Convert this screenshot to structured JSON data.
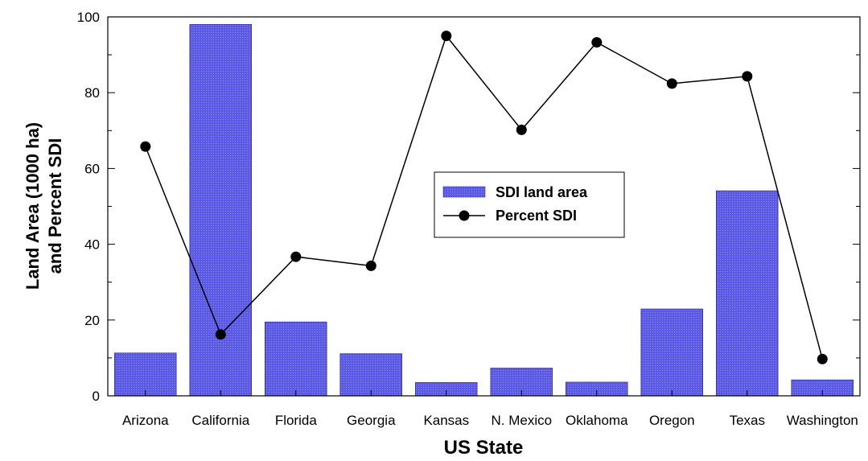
{
  "chart_data": {
    "type": "bar",
    "categories": [
      "Arizona",
      "California",
      "Florida",
      "Georgia",
      "Kansas",
      "N. Mexico",
      "Oklahoma",
      "Oregon",
      "Texas",
      "Washington"
    ],
    "series": [
      {
        "name": "SDI land area",
        "type": "bar",
        "color": "#4c4cdc",
        "values": [
          11.3,
          98.0,
          19.5,
          11.1,
          3.5,
          7.3,
          3.6,
          22.9,
          54.1,
          4.2
        ]
      },
      {
        "name": "Percent SDI",
        "type": "line",
        "color": "#000000",
        "values": [
          65.8,
          16.2,
          36.7,
          34.3,
          95.0,
          70.2,
          93.3,
          82.4,
          84.3,
          9.7
        ]
      }
    ],
    "xlabel": "US State",
    "ylabel_line1": "Land Area (1000 ha)",
    "ylabel_line2": "and Percent SDI",
    "ylim": [
      0,
      100
    ],
    "yticks": [
      0,
      20,
      40,
      60,
      80,
      100
    ],
    "grid": false,
    "legend_position": "center"
  }
}
